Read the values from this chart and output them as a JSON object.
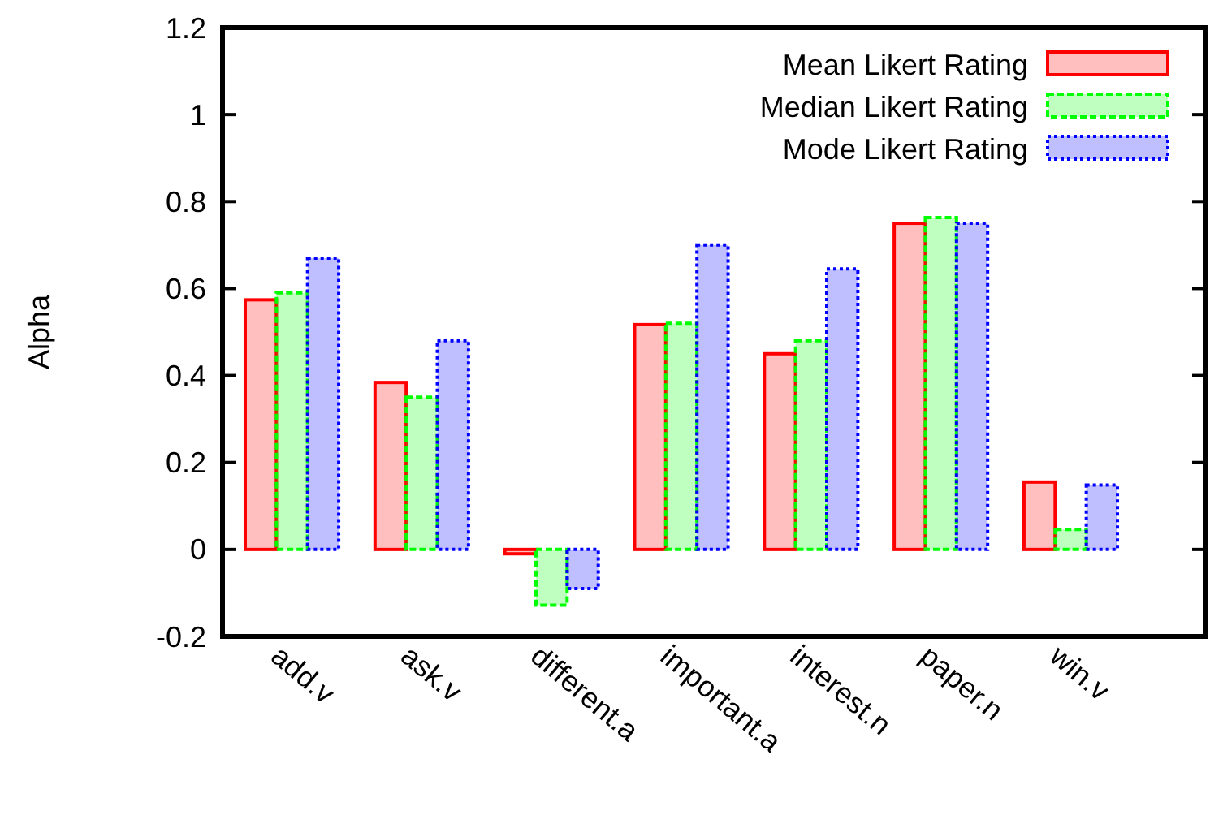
{
  "chart_data": {
    "type": "bar",
    "ylabel": "Alpha",
    "categories": [
      "add.v",
      "ask.v",
      "different.a",
      "important.a",
      "interest.n",
      "paper.n",
      "win.v"
    ],
    "series": [
      {
        "name": "Mean Likert Rating",
        "color": "#ff0000",
        "line_style": "solid",
        "values": [
          0.574,
          0.384,
          -0.01,
          0.517,
          0.45,
          0.75,
          0.155
        ]
      },
      {
        "name": "Median Likert Rating",
        "color": "#00ff00",
        "line_style": "dashed",
        "values": [
          0.59,
          0.35,
          -0.128,
          0.52,
          0.48,
          0.763,
          0.046
        ]
      },
      {
        "name": "Mode Likert Rating",
        "color": "#0000ff",
        "line_style": "dotted",
        "values": [
          0.67,
          0.48,
          -0.09,
          0.7,
          0.645,
          0.75,
          0.148
        ]
      }
    ],
    "ylim": [
      -0.2,
      1.2
    ],
    "yticks": [
      -0.2,
      0,
      0.2,
      0.4,
      0.6,
      0.8,
      1,
      1.2
    ],
    "grid": false,
    "legend": "top right"
  }
}
